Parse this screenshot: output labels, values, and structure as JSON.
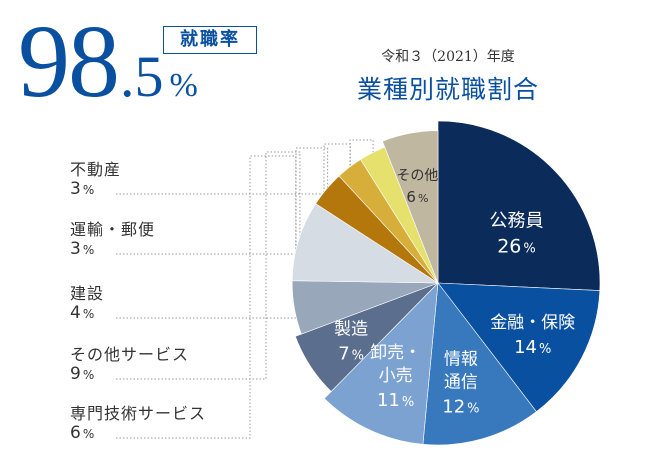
{
  "headline": {
    "rate_int": "98",
    "rate_dec": ".5",
    "rate_unit": "%",
    "rate_label": "就職率"
  },
  "chart_data": {
    "type": "pie",
    "subtitle": "令和３（2021）年度",
    "title": "業種別就職割合",
    "unit": "%",
    "slices": [
      {
        "name": "公務員",
        "value": 26,
        "color": "#0b2c5b",
        "text_color": "#ffffff"
      },
      {
        "name": "金融・保険",
        "value": 14,
        "color": "#0a50a0",
        "text_color": "#ffffff"
      },
      {
        "name": "情報通信",
        "label_lines": [
          "情報",
          "通信"
        ],
        "value": 12,
        "color": "#3878bd",
        "text_color": "#ffffff"
      },
      {
        "name": "卸売・小売",
        "label_lines": [
          "卸売・",
          "小売"
        ],
        "value": 11,
        "color": "#7ca2d2",
        "text_color": "#ffffff"
      },
      {
        "name": "製造",
        "value": 7,
        "color": "#5b6e8e",
        "text_color": "#ffffff"
      },
      {
        "name": "専門技術サービス",
        "value": 6,
        "color": "#98a8ba",
        "text_color": "#333333"
      },
      {
        "name": "その他サービス",
        "value": 9,
        "color": "#d6dce3",
        "text_color": "#333333"
      },
      {
        "name": "建設",
        "value": 4,
        "color": "#b3770b",
        "text_color": "#333333"
      },
      {
        "name": "運輸・郵便",
        "value": 3,
        "color": "#d7ae39",
        "text_color": "#333333"
      },
      {
        "name": "不動産",
        "value": 3,
        "color": "#e6e06c",
        "text_color": "#333333"
      },
      {
        "name": "その他",
        "value": 6,
        "color": "#bfb79f",
        "text_color": "#333333"
      }
    ],
    "legend": [
      {
        "name": "不動産",
        "value": "3",
        "slice": 9
      },
      {
        "name": "運輸・郵便",
        "value": "3",
        "slice": 8
      },
      {
        "name": "建設",
        "value": "4",
        "slice": 7
      },
      {
        "name": "その他サービス",
        "value": "9",
        "slice": 6
      },
      {
        "name": "専門技術サービス",
        "value": "6",
        "slice": 5
      }
    ]
  }
}
